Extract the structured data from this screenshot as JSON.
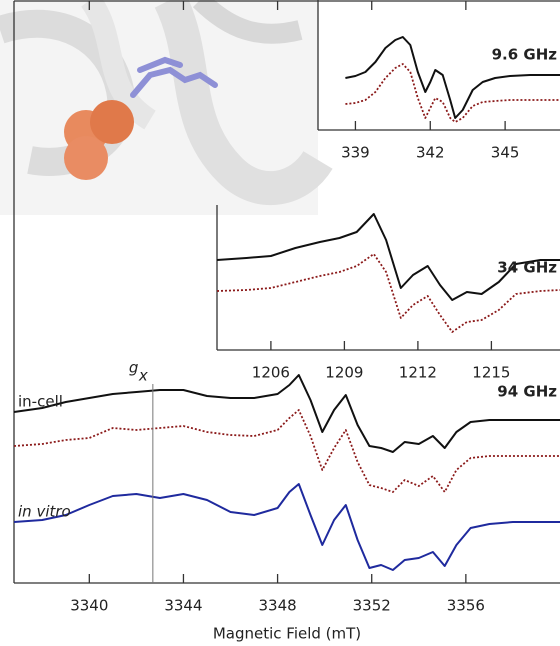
{
  "chart_data": [
    {
      "type": "line",
      "title": "9.6 GHz",
      "x": [
        338.6,
        339.0,
        339.4,
        339.8,
        340.2,
        340.6,
        340.9,
        341.2,
        341.5,
        341.8,
        342.0,
        342.2,
        342.5,
        342.8,
        343.0,
        343.3,
        343.7,
        344.1,
        344.6,
        345.2,
        346.0,
        347.2
      ],
      "series": [
        {
          "color": "#111111",
          "style": "solid",
          "values": [
            52,
            54,
            58,
            68,
            82,
            90,
            93,
            85,
            58,
            38,
            48,
            60,
            55,
            30,
            12,
            20,
            40,
            48,
            52,
            54,
            55,
            55
          ]
        },
        {
          "color": "#8b1a1a",
          "style": "dotted",
          "values": [
            26,
            27,
            30,
            38,
            52,
            62,
            66,
            58,
            32,
            12,
            22,
            32,
            28,
            12,
            8,
            12,
            24,
            28,
            29,
            30,
            30,
            30
          ]
        }
      ],
      "xlim": [
        337.5,
        347.2
      ],
      "xticks": [
        339,
        342,
        345
      ],
      "ylim": [
        0,
        130
      ]
    },
    {
      "type": "line",
      "title": "34 GHz",
      "x": [
        1203.8,
        1205,
        1206,
        1207,
        1208,
        1208.8,
        1209.5,
        1210.2,
        1210.7,
        1211.3,
        1211.8,
        1212.4,
        1212.9,
        1213.4,
        1214,
        1214.6,
        1215.3,
        1216,
        1217,
        1217.8
      ],
      "series": [
        {
          "color": "#111111",
          "style": "solid",
          "values": [
            90,
            92,
            94,
            102,
            108,
            112,
            118,
            136,
            110,
            62,
            75,
            84,
            65,
            50,
            58,
            56,
            68,
            86,
            90,
            90
          ]
        },
        {
          "color": "#8b1a1a",
          "style": "dotted",
          "values": [
            59,
            60,
            62,
            68,
            74,
            78,
            84,
            96,
            78,
            32,
            45,
            54,
            35,
            18,
            28,
            30,
            40,
            56,
            59,
            60
          ]
        }
      ],
      "xlim": [
        1203.8,
        1217.8
      ],
      "xticks": [
        1206,
        1209,
        1212,
        1215
      ],
      "ylim": [
        0,
        150
      ]
    },
    {
      "type": "line",
      "title": "94 GHz",
      "xlabel": "Magnetic Field (mT)",
      "x": [
        3336.8,
        3338,
        3339,
        3340,
        3341,
        3342,
        3343,
        3344,
        3345,
        3346,
        3347,
        3348,
        3348.5,
        3348.9,
        3349.4,
        3349.9,
        3350.4,
        3350.9,
        3351.4,
        3351.9,
        3352.4,
        3352.9,
        3353.4,
        3354,
        3354.6,
        3355.1,
        3355.6,
        3356.2,
        3357,
        3358,
        3360
      ],
      "series": [
        {
          "name": "in-cell",
          "color": "#111111",
          "style": "solid",
          "values": [
            171,
            175,
            181,
            185,
            189,
            191,
            193,
            193,
            187,
            185,
            185,
            189,
            198,
            208,
            183,
            151,
            173,
            188,
            158,
            137,
            135,
            131,
            141,
            139,
            147,
            135,
            151,
            161,
            163,
            163,
            163
          ]
        },
        {
          "color": "#8b1a1a",
          "style": "dotted",
          "values": [
            137,
            139,
            143,
            145,
            155,
            153,
            155,
            157,
            151,
            148,
            147,
            153,
            165,
            173,
            147,
            113,
            135,
            153,
            121,
            98,
            95,
            91,
            103,
            97,
            107,
            91,
            113,
            125,
            127,
            127,
            127
          ]
        },
        {
          "name": "in vitro",
          "color": "#1f2a9e",
          "style": "solid",
          "values": [
            61,
            63,
            68,
            78,
            87,
            89,
            85,
            89,
            83,
            71,
            68,
            75,
            91,
            99,
            68,
            38,
            63,
            78,
            43,
            15,
            18,
            13,
            23,
            25,
            31,
            17,
            38,
            55,
            59,
            61,
            61
          ]
        }
      ],
      "annotation": {
        "text": "g",
        "subscript": "x",
        "x": 3342.7
      },
      "xlim": [
        3336.8,
        3360
      ],
      "xticks": [
        3340,
        3344,
        3348,
        3352,
        3356
      ],
      "ylim": [
        0,
        223
      ]
    }
  ]
}
